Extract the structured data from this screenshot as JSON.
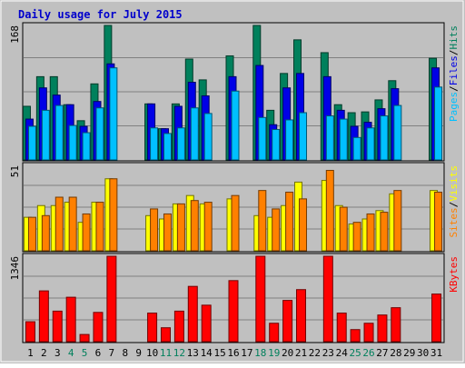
{
  "title": "Daily usage for July 2015",
  "colors": {
    "background": "#c0c0c0",
    "title_text": "#0000cc",
    "grid": "#808080",
    "hits": "#00805c",
    "files": "#0000e6",
    "pages": "#00c0ff",
    "visits": "#ff8000",
    "sites": "#ffff00",
    "kbytes": "#ff0000",
    "weekend_day": "#00805c",
    "weekday": "#000000"
  },
  "chart_data": [
    {
      "type": "bar",
      "name": "hits-files-pages",
      "y_max_label": "168",
      "ylim": [
        0,
        168
      ],
      "right_labels": [
        {
          "text": "Pages",
          "color_key": "pages"
        },
        {
          "text": "/",
          "color_key": "weekday"
        },
        {
          "text": "Files",
          "color_key": "files"
        },
        {
          "text": "/",
          "color_key": "weekday"
        },
        {
          "text": "Hits",
          "color_key": "hits"
        }
      ],
      "series": [
        {
          "name": "Hits",
          "color_key": "hits",
          "values": [
            67,
            104,
            104,
            69,
            49,
            95,
            168,
            0,
            0,
            70,
            39,
            70,
            126,
            100,
            0,
            130,
            0,
            168,
            62,
            108,
            150,
            0,
            134,
            69,
            59,
            60,
            75,
            99,
            0,
            0,
            127
          ]
        },
        {
          "name": "Files",
          "color_key": "files",
          "values": [
            51,
            90,
            81,
            69,
            42,
            73,
            120,
            0,
            0,
            70,
            39,
            67,
            97,
            80,
            0,
            104,
            0,
            118,
            44,
            90,
            108,
            0,
            104,
            62,
            42,
            47,
            64,
            89,
            0,
            0,
            115
          ]
        },
        {
          "name": "Pages",
          "color_key": "pages",
          "values": [
            42,
            62,
            68,
            43,
            34,
            65,
            115,
            0,
            0,
            40,
            33,
            40,
            65,
            58,
            0,
            86,
            0,
            53,
            38,
            50,
            59,
            0,
            55,
            51,
            28,
            40,
            55,
            68,
            0,
            0,
            91
          ]
        }
      ]
    },
    {
      "type": "bar",
      "name": "sites-visits",
      "y_max_label": "51",
      "ylim": [
        0,
        51
      ],
      "right_labels": [
        {
          "text": "Sites",
          "color_key": "visits"
        },
        {
          "text": "/",
          "color_key": "weekday"
        },
        {
          "text": "Visits",
          "color_key": "sites"
        }
      ],
      "series": [
        {
          "name": "Sites",
          "color_key": "sites",
          "values": [
            20,
            27,
            27,
            29,
            17,
            29,
            43,
            0,
            0,
            21,
            19,
            28,
            33,
            28,
            0,
            31,
            0,
            21,
            20,
            27,
            41,
            0,
            42,
            27,
            16,
            19,
            24,
            34,
            0,
            0,
            36
          ]
        },
        {
          "name": "Visits",
          "color_key": "visits",
          "values": [
            20,
            21,
            32,
            32,
            22,
            29,
            43,
            0,
            0,
            25,
            22,
            28,
            30,
            29,
            0,
            33,
            0,
            36,
            25,
            35,
            31,
            0,
            48,
            26,
            17,
            22,
            23,
            36,
            0,
            0,
            35
          ]
        }
      ]
    },
    {
      "type": "bar",
      "name": "kbytes",
      "y_max_label": "1346",
      "ylim": [
        0,
        1346
      ],
      "right_labels": [
        {
          "text": "KBytes",
          "color_key": "kbytes"
        }
      ],
      "series": [
        {
          "name": "KBytes",
          "color_key": "kbytes",
          "values": [
            314,
            800,
            481,
            700,
            113,
            461,
            1346,
            0,
            0,
            450,
            219,
            481,
            871,
            575,
            0,
            962,
            0,
            1346,
            290,
            650,
            820,
            0,
            1346,
            450,
            190,
            290,
            420,
            535,
            0,
            0,
            750
          ]
        }
      ]
    }
  ],
  "x_labels": [
    {
      "text": "1",
      "weekend": false
    },
    {
      "text": "2",
      "weekend": false
    },
    {
      "text": "3",
      "weekend": false
    },
    {
      "text": "4",
      "weekend": true
    },
    {
      "text": "5",
      "weekend": true
    },
    {
      "text": "6",
      "weekend": false
    },
    {
      "text": "7",
      "weekend": false
    },
    {
      "text": "8",
      "weekend": false
    },
    {
      "text": "9",
      "weekend": false
    },
    {
      "text": "10",
      "weekend": false
    },
    {
      "text": "11",
      "weekend": true
    },
    {
      "text": "12",
      "weekend": true
    },
    {
      "text": "13",
      "weekend": false
    },
    {
      "text": "14",
      "weekend": false
    },
    {
      "text": "15",
      "weekend": false
    },
    {
      "text": "16",
      "weekend": false
    },
    {
      "text": "17",
      "weekend": false
    },
    {
      "text": "18",
      "weekend": true
    },
    {
      "text": "19",
      "weekend": true
    },
    {
      "text": "20",
      "weekend": false
    },
    {
      "text": "21",
      "weekend": false
    },
    {
      "text": "22",
      "weekend": false
    },
    {
      "text": "23",
      "weekend": false
    },
    {
      "text": "24",
      "weekend": false
    },
    {
      "text": "25",
      "weekend": true
    },
    {
      "text": "26",
      "weekend": true
    },
    {
      "text": "27",
      "weekend": false
    },
    {
      "text": "28",
      "weekend": false
    },
    {
      "text": "29",
      "weekend": false
    },
    {
      "text": "30",
      "weekend": false
    },
    {
      "text": "31",
      "weekend": false
    }
  ]
}
